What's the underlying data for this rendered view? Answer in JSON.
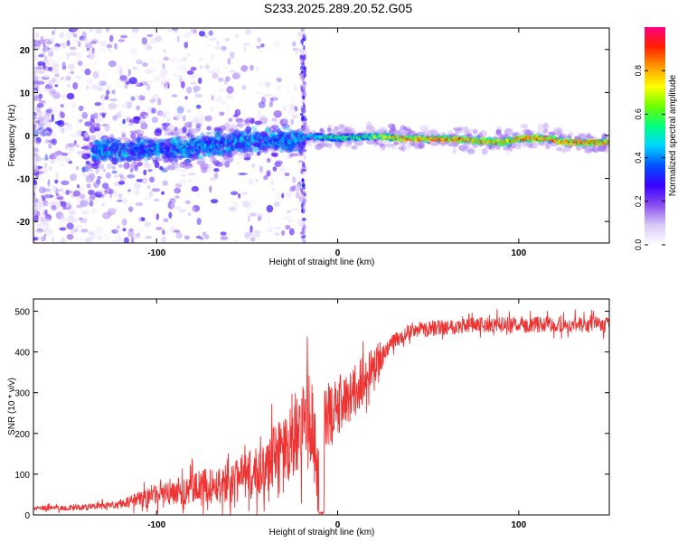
{
  "title": "S233.2025.289.20.52.G05",
  "chart_data": [
    {
      "type": "heatmap",
      "xlabel": "Height of straight line (km)",
      "ylabel": "Frequency (Hz)",
      "xlim": [
        -168,
        150
      ],
      "ylim": [
        -25,
        25
      ],
      "x_ticks": [
        -100,
        0,
        100
      ],
      "y_ticks": [
        -20,
        -10,
        0,
        10,
        20
      ],
      "colorbar": {
        "label": "Normalized spectral amplitude",
        "range": [
          0,
          1
        ],
        "ticks": [
          0,
          0.2,
          0.4,
          0.6,
          0.8
        ],
        "tick_labels": [
          "0.0",
          "0.2",
          "0.4",
          "0.6",
          "0.8"
        ],
        "colors": [
          "#ffffff",
          "#d8c8f6",
          "#8a4ff0",
          "#3a00ff",
          "#0050ff",
          "#00d4ff",
          "#00ff80",
          "#6cff00",
          "#ffff00",
          "#ff9a00",
          "#ff2000",
          "#ff0080"
        ]
      },
      "ridge": [
        {
          "x": -130,
          "f": -3.5
        },
        {
          "x": -100,
          "f": -3.3
        },
        {
          "x": -70,
          "f": -2.2
        },
        {
          "x": -40,
          "f": -0.8
        },
        {
          "x": -25,
          "f": -1.2
        },
        {
          "x": -15,
          "f": -0.2
        },
        {
          "x": 0,
          "f": -0.6
        },
        {
          "x": 20,
          "f": -0.2
        },
        {
          "x": 40,
          "f": -0.8
        },
        {
          "x": 60,
          "f": -0.8
        },
        {
          "x": 80,
          "f": -1.3
        },
        {
          "x": 90,
          "f": -1.6
        },
        {
          "x": 100,
          "f": -0.8
        },
        {
          "x": 115,
          "f": -0.6
        },
        {
          "x": 125,
          "f": -1.5
        },
        {
          "x": 150,
          "f": -1.6
        }
      ],
      "ridge_intensity": [
        {
          "x": -130,
          "v": 0.35
        },
        {
          "x": -60,
          "v": 0.35
        },
        {
          "x": -25,
          "v": 0.4
        },
        {
          "x": -5,
          "v": 0.55
        },
        {
          "x": 15,
          "v": 0.6
        },
        {
          "x": 35,
          "v": 0.85
        },
        {
          "x": 70,
          "v": 0.9
        },
        {
          "x": 85,
          "v": 0.8
        },
        {
          "x": 100,
          "v": 0.88
        },
        {
          "x": 150,
          "v": 0.92
        }
      ],
      "vertical_streak_x": -19
    },
    {
      "type": "line",
      "xlabel": "Height of straight line (km)",
      "ylabel": "SNR (10 * v/v)",
      "xlim": [
        -168,
        150
      ],
      "ylim": [
        0,
        530
      ],
      "x_ticks": [
        -100,
        0,
        100
      ],
      "y_ticks": [
        0,
        100,
        200,
        300,
        400,
        500
      ],
      "series": [
        {
          "name": "SNR",
          "color": "#ee3333",
          "trend": [
            {
              "x": -168,
              "y": 15
            },
            {
              "x": -140,
              "y": 18
            },
            {
              "x": -120,
              "y": 25
            },
            {
              "x": -100,
              "y": 45
            },
            {
              "x": -80,
              "y": 60
            },
            {
              "x": -60,
              "y": 75
            },
            {
              "x": -45,
              "y": 95
            },
            {
              "x": -30,
              "y": 140
            },
            {
              "x": -20,
              "y": 220
            },
            {
              "x": -14,
              "y": 240
            },
            {
              "x": -9,
              "y": 3
            },
            {
              "x": -7,
              "y": 230
            },
            {
              "x": 0,
              "y": 260
            },
            {
              "x": 10,
              "y": 300
            },
            {
              "x": 20,
              "y": 360
            },
            {
              "x": 30,
              "y": 420
            },
            {
              "x": 40,
              "y": 450
            },
            {
              "x": 60,
              "y": 460
            },
            {
              "x": 80,
              "y": 465
            },
            {
              "x": 100,
              "y": 465
            },
            {
              "x": 150,
              "y": 465
            }
          ],
          "noise": [
            {
              "x": -168,
              "a": 6
            },
            {
              "x": -120,
              "a": 10
            },
            {
              "x": -100,
              "a": 35
            },
            {
              "x": -60,
              "a": 55
            },
            {
              "x": -40,
              "a": 80
            },
            {
              "x": -22,
              "a": 130
            },
            {
              "x": -14,
              "a": 130
            },
            {
              "x": -8,
              "a": 90
            },
            {
              "x": 10,
              "a": 70
            },
            {
              "x": 30,
              "a": 35
            },
            {
              "x": 60,
              "a": 35
            },
            {
              "x": 150,
              "a": 35
            }
          ]
        }
      ]
    }
  ]
}
